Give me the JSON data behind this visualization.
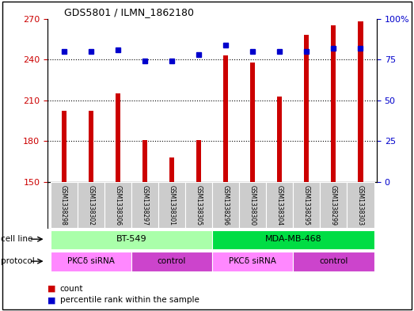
{
  "title": "GDS5801 / ILMN_1862180",
  "samples": [
    "GSM1338298",
    "GSM1338302",
    "GSM1338306",
    "GSM1338297",
    "GSM1338301",
    "GSM1338305",
    "GSM1338296",
    "GSM1338300",
    "GSM1338304",
    "GSM1338295",
    "GSM1338299",
    "GSM1338303"
  ],
  "counts": [
    202,
    202,
    215,
    181,
    168,
    181,
    243,
    238,
    213,
    258,
    265,
    268
  ],
  "percentiles": [
    80,
    80,
    81,
    74,
    74,
    78,
    84,
    80,
    80,
    80,
    82,
    82
  ],
  "ylim_left": [
    150,
    270
  ],
  "ylim_right": [
    0,
    100
  ],
  "yticks_left": [
    150,
    180,
    210,
    240,
    270
  ],
  "yticks_right": [
    0,
    25,
    50,
    75,
    100
  ],
  "cell_lines": [
    {
      "label": "BT-549",
      "start": 0,
      "end": 6,
      "color": "#aaffaa"
    },
    {
      "label": "MDA-MB-468",
      "start": 6,
      "end": 12,
      "color": "#00dd44"
    }
  ],
  "protocols": [
    {
      "label": "PKCδ siRNA",
      "start": 0,
      "end": 3,
      "color": "#ff88ff"
    },
    {
      "label": "control",
      "start": 3,
      "end": 6,
      "color": "#cc44cc"
    },
    {
      "label": "PKCδ siRNA",
      "start": 6,
      "end": 9,
      "color": "#ff88ff"
    },
    {
      "label": "control",
      "start": 9,
      "end": 12,
      "color": "#cc44cc"
    }
  ],
  "bar_color": "#cc0000",
  "dot_color": "#0000cc",
  "bg_color": "#ffffff",
  "sample_bg_color": "#cccccc",
  "left_axis_color": "#cc0000",
  "right_axis_color": "#0000cc",
  "bar_width": 0.18
}
